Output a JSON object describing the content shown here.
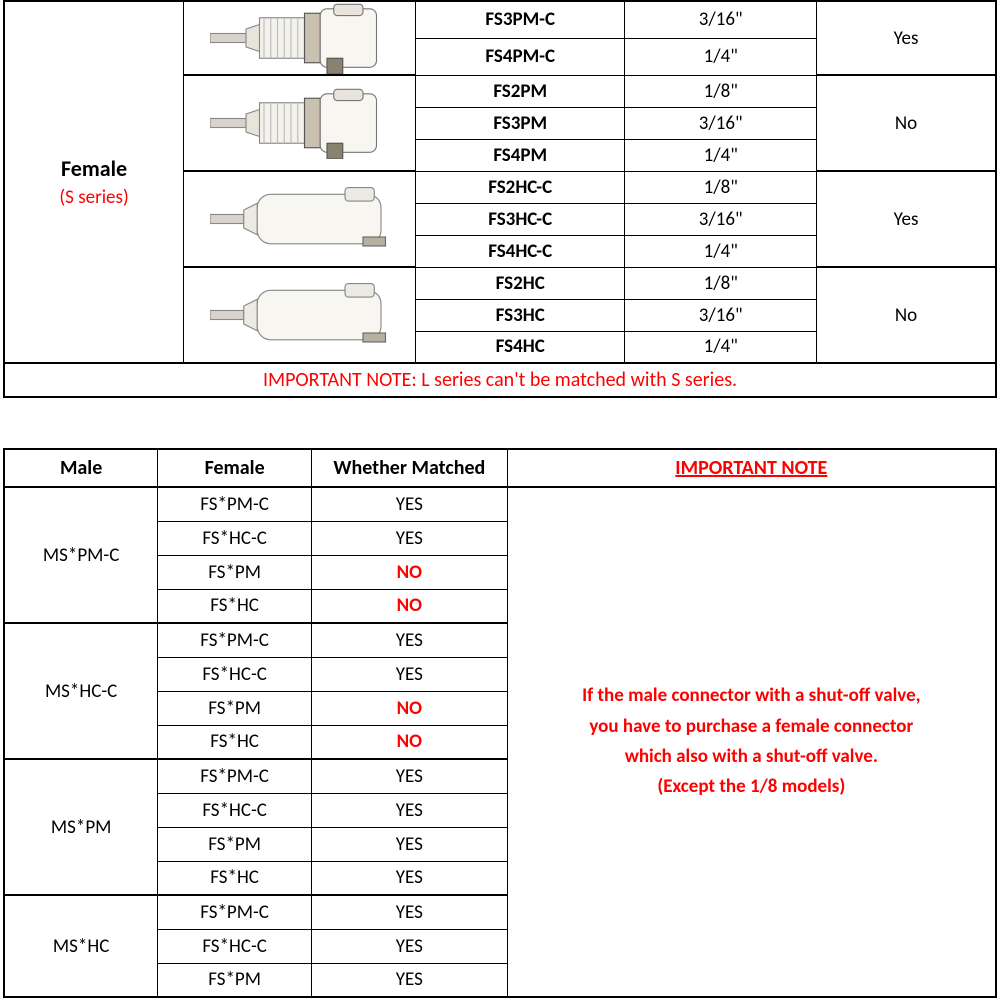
{
  "top": {
    "label_main": "Female",
    "label_sub": "(S series)",
    "groups": [
      {
        "img_type": "pm",
        "valve": "Yes",
        "rows": [
          {
            "model": "FS3PM-C",
            "size": "3/16\""
          },
          {
            "model": "FS4PM-C",
            "size": "1/4\""
          }
        ]
      },
      {
        "img_type": "pm",
        "valve": "No",
        "rows": [
          {
            "model": "FS2PM",
            "size": "1/8\""
          },
          {
            "model": "FS3PM",
            "size": "3/16\""
          },
          {
            "model": "FS4PM",
            "size": "1/4\""
          }
        ]
      },
      {
        "img_type": "hc",
        "valve": "Yes",
        "rows": [
          {
            "model": "FS2HC-C",
            "size": "1/8\""
          },
          {
            "model": "FS3HC-C",
            "size": "3/16\""
          },
          {
            "model": "FS4HC-C",
            "size": "1/4\""
          }
        ]
      },
      {
        "img_type": "hc",
        "valve": "No",
        "rows": [
          {
            "model": "FS2HC",
            "size": "1/8\""
          },
          {
            "model": "FS3HC",
            "size": "3/16\""
          },
          {
            "model": "FS4HC",
            "size": "1/4\""
          }
        ]
      }
    ],
    "note": "IMPORTANT NOTE: L series can't be matched with S series."
  },
  "bottom": {
    "headers": {
      "male": "Male",
      "female": "Female",
      "matched": "Whether Matched",
      "note": "IMPORTANT NOTE"
    },
    "note_lines": [
      "If the male connector with a shut-off valve,",
      "you have to purchase a female connector",
      "which also with a shut-off valve.",
      "(Except the 1/8 models)"
    ],
    "groups": [
      {
        "male": "MS*PM-C",
        "rows": [
          {
            "f": "FS*PM-C",
            "m": "YES",
            "red": false
          },
          {
            "f": "FS*HC-C",
            "m": "YES",
            "red": false
          },
          {
            "f": "FS*PM",
            "m": "NO",
            "red": true
          },
          {
            "f": "FS*HC",
            "m": "NO",
            "red": true
          }
        ]
      },
      {
        "male": "MS*HC-C",
        "rows": [
          {
            "f": "FS*PM-C",
            "m": "YES",
            "red": false
          },
          {
            "f": "FS*HC-C",
            "m": "YES",
            "red": false
          },
          {
            "f": "FS*PM",
            "m": "NO",
            "red": true
          },
          {
            "f": "FS*HC",
            "m": "NO",
            "red": true
          }
        ]
      },
      {
        "male": "MS*PM",
        "rows": [
          {
            "f": "FS*PM-C",
            "m": "YES",
            "red": false
          },
          {
            "f": "FS*HC-C",
            "m": "YES",
            "red": false
          },
          {
            "f": "FS*PM",
            "m": "YES",
            "red": false
          },
          {
            "f": "FS*HC",
            "m": "YES",
            "red": false
          }
        ]
      },
      {
        "male": "MS*HC",
        "rows": [
          {
            "f": "FS*PM-C",
            "m": "YES",
            "red": false
          },
          {
            "f": "FS*HC-C",
            "m": "YES",
            "red": false
          },
          {
            "f": "FS*PM",
            "m": "YES",
            "red": false
          }
        ]
      }
    ]
  },
  "colors": {
    "red": "#ff0000",
    "border": "#000000",
    "bg": "#ffffff"
  }
}
